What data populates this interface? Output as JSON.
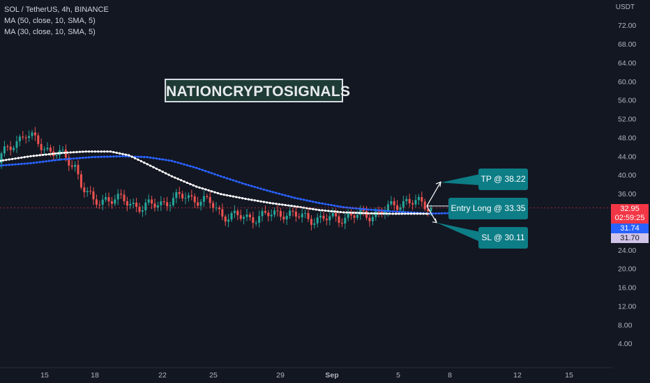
{
  "header": {
    "symbol_line": "SOL / TetherUS, 4h, BINANCE",
    "indicators": [
      "MA (50, close, 10, SMA, 5)",
      "MA (30, close, 10, SMA, 5)"
    ]
  },
  "watermark": "NATIONCRYPTOSIGNALS",
  "annotations": {
    "tp": "TP @ 38.22",
    "entry": "Entry Long @ 33.35",
    "sl": "SL @ 30.11"
  },
  "price_scale": {
    "currency": "USDT",
    "ticks": [
      "72.00",
      "68.00",
      "64.00",
      "60.00",
      "56.00",
      "52.00",
      "48.00",
      "44.00",
      "40.00",
      "36.00",
      "32.00",
      "28.00",
      "24.00",
      "20.00",
      "16.00",
      "12.00",
      "8.00",
      "4.00"
    ]
  },
  "price_tags": {
    "last_price": "32.95",
    "countdown": "02:59:25",
    "ma_blue": "31.74",
    "ma_white": "31.70"
  },
  "colors": {
    "background": "#131722",
    "bull": "#26a69a",
    "bear": "#ef5350",
    "ma_blue": "#2962ff",
    "ma_white": "#ffffff",
    "callout": "#0d7d86",
    "last_price_tag": "#f23645",
    "ma_blue_tag": "#2962ff",
    "ma_white_tag": "#d1c4e9"
  },
  "time_axis": {
    "labels": [
      "15",
      "18",
      "22",
      "25",
      "29",
      "Sep",
      "5",
      "8",
      "12",
      "15"
    ]
  },
  "chart_data": {
    "type": "line",
    "title": "SOL / TetherUS, 4h, BINANCE",
    "xlabel": "",
    "ylabel": "USDT",
    "ylim": [
      1.5,
      73.5
    ],
    "x_ticks": [
      "15",
      "18",
      "22",
      "25",
      "29",
      "Sep",
      "5",
      "8",
      "12",
      "15"
    ],
    "series": [
      {
        "name": "MA (50, close, 10, SMA, 5)",
        "color": "#2962ff",
        "points": [
          [
            0,
            42
          ],
          [
            5,
            42.5
          ],
          [
            10,
            43.3
          ],
          [
            15,
            43.8
          ],
          [
            20,
            44
          ],
          [
            24,
            43.8
          ],
          [
            28,
            43
          ],
          [
            32,
            41.5
          ],
          [
            36,
            39.7
          ],
          [
            40,
            38
          ],
          [
            44,
            36.5
          ],
          [
            48,
            35.1
          ],
          [
            52,
            34
          ],
          [
            56,
            33.1
          ],
          [
            60,
            32.6
          ],
          [
            64,
            32.2
          ],
          [
            68,
            31.9
          ],
          [
            70,
            31.74
          ],
          [
            76,
            31.9
          ]
        ]
      },
      {
        "name": "MA (30, close, 10, SMA, 5)",
        "color": "#ffffff",
        "points": [
          [
            0,
            43
          ],
          [
            5,
            44
          ],
          [
            10,
            44.7
          ],
          [
            14,
            45
          ],
          [
            18,
            45
          ],
          [
            21,
            44.2
          ],
          [
            24,
            42.3
          ],
          [
            28,
            39.7
          ],
          [
            32,
            37.5
          ],
          [
            36,
            35.9
          ],
          [
            40,
            34.9
          ],
          [
            44,
            34
          ],
          [
            48,
            33.3
          ],
          [
            52,
            32.5
          ],
          [
            56,
            32
          ],
          [
            60,
            31.8
          ],
          [
            64,
            31.7
          ],
          [
            68,
            31.72
          ],
          [
            70,
            31.7
          ]
        ]
      }
    ],
    "trade_setup": {
      "entry": 33.35,
      "take_profit": 38.22,
      "stop_loss": 30.11
    },
    "last_price": 32.95
  }
}
